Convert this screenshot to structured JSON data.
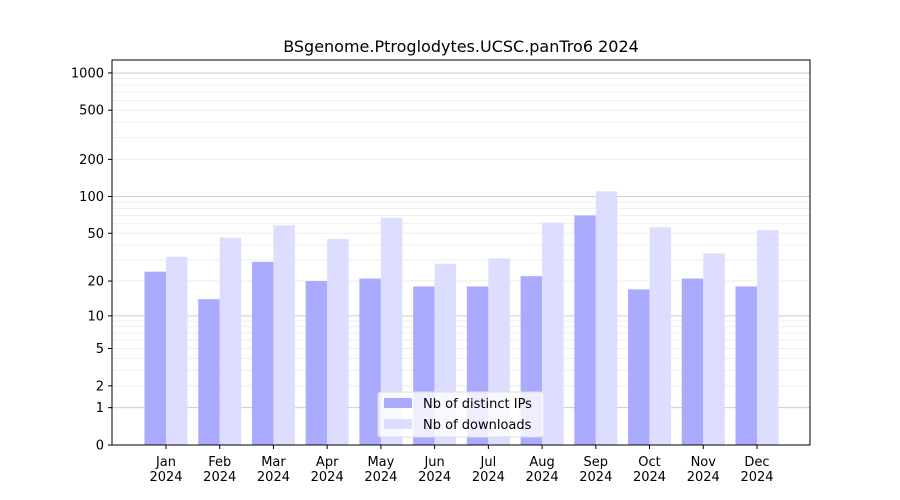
{
  "chart_data": {
    "type": "bar",
    "title": "BSgenome.Ptroglodytes.UCSC.panTro6 2024",
    "xlabel": "",
    "ylabel": "",
    "yscale": "symlog (log10(1+y))",
    "ylim": [
      0,
      1200
    ],
    "yticks": [
      0,
      1,
      2,
      5,
      10,
      20,
      50,
      100,
      200,
      500,
      1000
    ],
    "grid": true,
    "legend_position": "bottom-center",
    "categories": [
      "Jan\n2024",
      "Feb\n2024",
      "Mar\n2024",
      "Apr\n2024",
      "May\n2024",
      "Jun\n2024",
      "Jul\n2024",
      "Aug\n2024",
      "Sep\n2024",
      "Oct\n2024",
      "Nov\n2024",
      "Dec\n2024"
    ],
    "series": [
      {
        "name": "Nb of distinct IPs",
        "color": "#aaaaff",
        "values": [
          24,
          14,
          29,
          20,
          21,
          18,
          18,
          22,
          70,
          17,
          21,
          18
        ]
      },
      {
        "name": "Nb of downloads",
        "color": "#ddddff",
        "values": [
          32,
          46,
          58,
          45,
          67,
          28,
          31,
          61,
          110,
          56,
          34,
          53
        ]
      }
    ]
  }
}
